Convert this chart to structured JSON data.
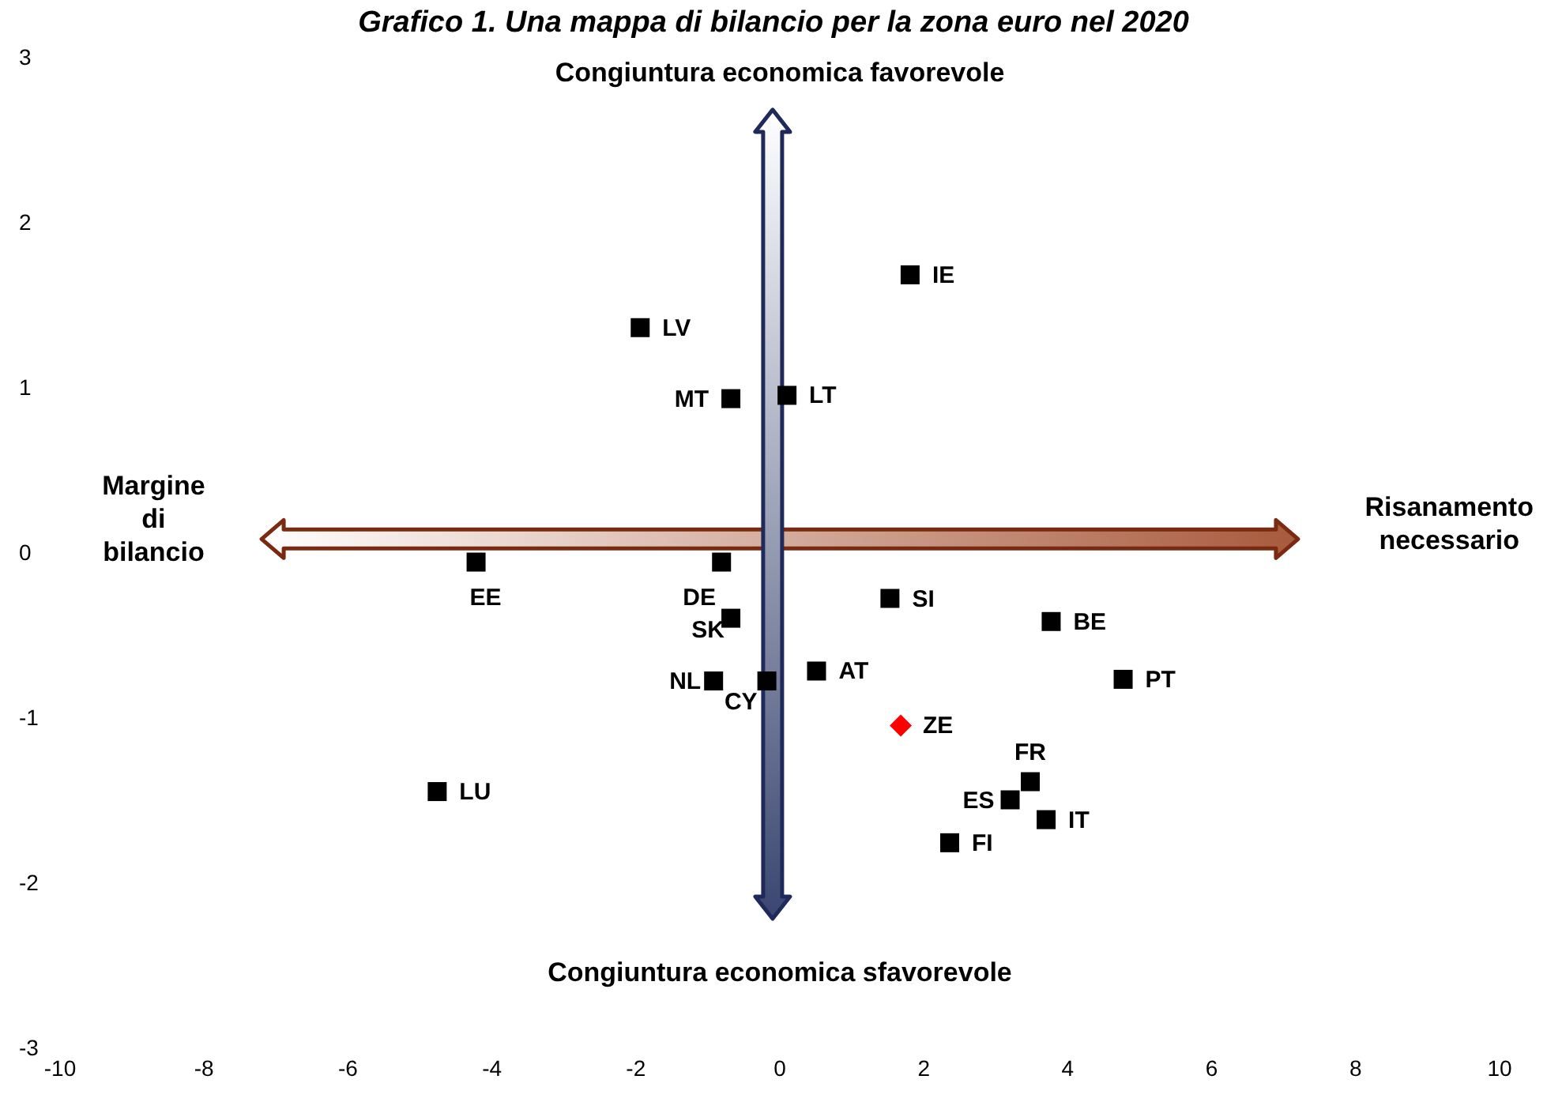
{
  "chart_data": {
    "type": "scatter",
    "title": "Grafico 1. Una mappa di bilancio per la zona euro nel 2020",
    "xlim": [
      -10,
      10
    ],
    "xticks": [
      -10,
      -8,
      -6,
      -4,
      -2,
      0,
      2,
      4,
      6,
      8,
      10
    ],
    "ylim": [
      -3,
      3
    ],
    "yticks": [
      -3,
      -2,
      -1,
      0,
      1,
      2,
      3
    ],
    "grid": false,
    "legend": false,
    "series": [
      {
        "color": "#000000",
        "marker": "square",
        "x": [
          1.81,
          -1.94,
          -0.68,
          0.1,
          -4.22,
          -0.81,
          -0.68,
          -0.92,
          -0.18,
          0.51,
          1.53,
          3.77,
          4.77,
          3.48,
          3.2,
          3.7,
          2.36,
          -4.76
        ],
        "values": [
          1.68,
          1.36,
          0.93,
          0.95,
          -0.06,
          -0.06,
          -0.4,
          -0.78,
          -0.78,
          -0.72,
          -0.28,
          -0.42,
          -0.77,
          -1.39,
          -1.5,
          -1.62,
          -1.76,
          -1.45
        ]
      },
      {
        "color": "#ff0000",
        "marker": "diamond",
        "x": [
          1.68
        ],
        "values": [
          -1.05
        ]
      }
    ],
    "annotations": [
      "Congiuntura economica favorevole",
      "Congiuntura economica sfavorevole",
      "Margine di bilancio",
      "Risanamento necessario",
      {
        "text": "IE",
        "x": 1.81,
        "y": 1.68
      },
      {
        "text": "LV",
        "x": -1.94,
        "y": 1.36
      },
      {
        "text": "MT",
        "x": -0.68,
        "y": 0.93
      },
      {
        "text": "LT",
        "x": 0.1,
        "y": 0.95
      },
      {
        "text": "EE",
        "x": -4.22,
        "y": -0.06
      },
      {
        "text": "DE",
        "x": -0.81,
        "y": -0.06
      },
      {
        "text": "SK",
        "x": -0.68,
        "y": -0.4
      },
      {
        "text": "NL",
        "x": -0.92,
        "y": -0.78
      },
      {
        "text": "CY",
        "x": -0.18,
        "y": -0.78
      },
      {
        "text": "AT",
        "x": 0.51,
        "y": -0.72
      },
      {
        "text": "SI",
        "x": 1.53,
        "y": -0.28
      },
      {
        "text": "BE",
        "x": 3.77,
        "y": -0.42
      },
      {
        "text": "PT",
        "x": 4.77,
        "y": -0.77
      },
      {
        "text": "FR",
        "x": 3.48,
        "y": -1.39
      },
      {
        "text": "ES",
        "x": 3.2,
        "y": -1.5
      },
      {
        "text": "IT",
        "x": 3.7,
        "y": -1.62
      },
      {
        "text": "FI",
        "x": 2.36,
        "y": -1.76
      },
      {
        "text": "LU",
        "x": -4.76,
        "y": -1.45
      },
      {
        "text": "ZE",
        "x": 1.68,
        "y": -1.05
      }
    ]
  }
}
